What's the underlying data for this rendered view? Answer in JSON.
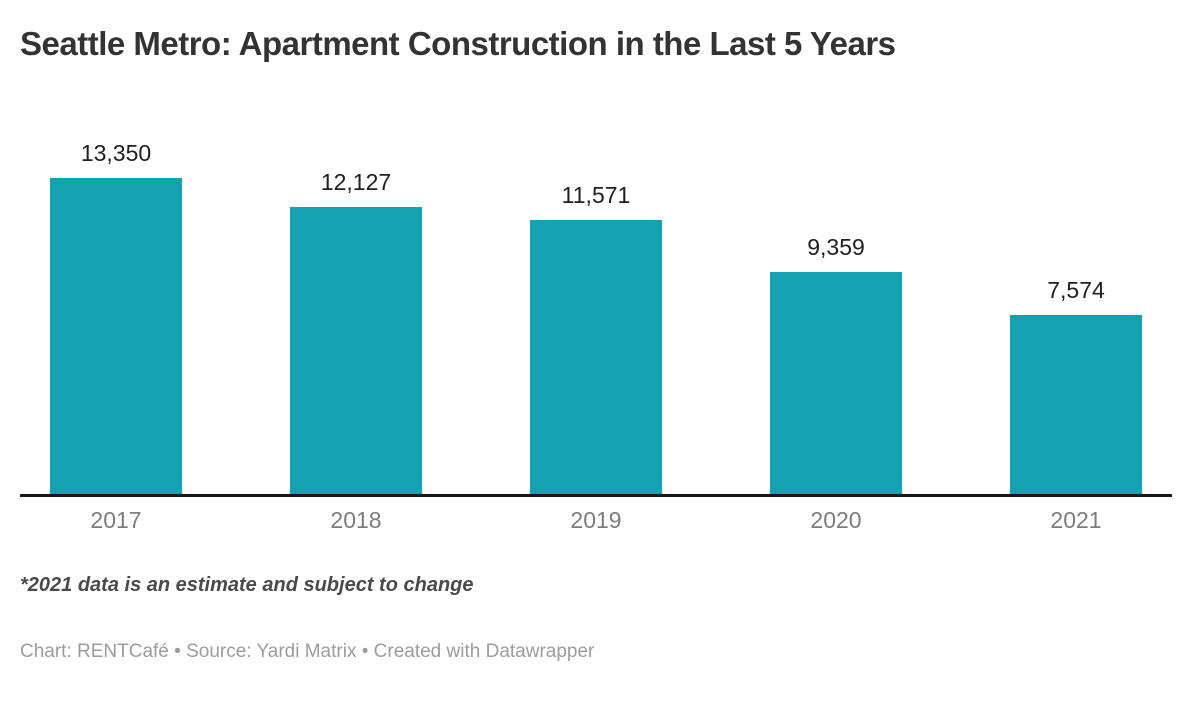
{
  "header": {
    "title": "Seattle Metro: Apartment Construction in the Last 5 Years"
  },
  "chart_data": {
    "type": "bar",
    "title": "Seattle Metro: Apartment Construction in the Last 5 Years",
    "categories": [
      "2017",
      "2018",
      "2019",
      "2020",
      "2021"
    ],
    "values": [
      13350,
      12127,
      11571,
      9359,
      7574
    ],
    "value_labels": [
      "13,350",
      "12,127",
      "11,571",
      "9,359",
      "7,574"
    ],
    "xlabel": "",
    "ylabel": "",
    "ylim": [
      0,
      14100
    ],
    "grid": false,
    "legend": "none",
    "bar_color": "#14a2b1",
    "axis_line_color": "#191919"
  },
  "footnote": "*2021 data is an estimate and subject to change",
  "credits": "Chart: RENTCafé • Source: Yardi Matrix • Created with Datawrapper",
  "colors": {
    "title": "#333333",
    "value_label": "#202020",
    "tick_label": "#7d7d7d",
    "footnote": "#4a4a4a",
    "credits": "#9c9c9c",
    "background": "#ffffff"
  }
}
